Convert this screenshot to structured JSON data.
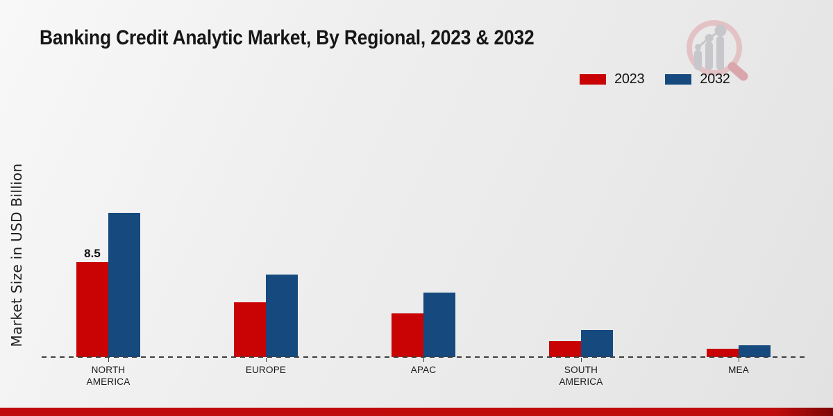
{
  "page": {
    "title": "Banking Credit Analytic Market, By Regional, 2023 & 2032"
  },
  "branding": {
    "logo_name": "magnifier-bar-chart-logo",
    "logo_circle_color": "#e3c2c6",
    "logo_handle_color": "#d9a6ab",
    "logo_bars_color": "#c7c7cb",
    "footer_bar_color": "#c00c0c",
    "footer_bar_dark_color": "#7e0707"
  },
  "chart_data": {
    "type": "bar",
    "title": "Banking Credit Analytic Market, By Regional, 2023 & 2032",
    "xlabel": "",
    "ylabel": "Market Size in USD Billion",
    "categories": [
      "NORTH AMERICA",
      "EUROPE",
      "APAC",
      "SOUTH AMERICA",
      "MEA"
    ],
    "series": [
      {
        "name": "2023",
        "color": "#c90303",
        "values": [
          8.5,
          4.9,
          3.9,
          1.4,
          0.75
        ]
      },
      {
        "name": "2032",
        "color": "#164a7f",
        "values": [
          12.9,
          7.4,
          5.8,
          2.4,
          1.05
        ]
      }
    ],
    "annotations": [
      {
        "category": "NORTH AMERICA",
        "series": "2023",
        "text": "8.5"
      }
    ],
    "ylim": [
      0,
      14
    ],
    "grid": false,
    "y_axis_visible": false,
    "baseline_style": "dashed",
    "legend_position": "top-right"
  }
}
